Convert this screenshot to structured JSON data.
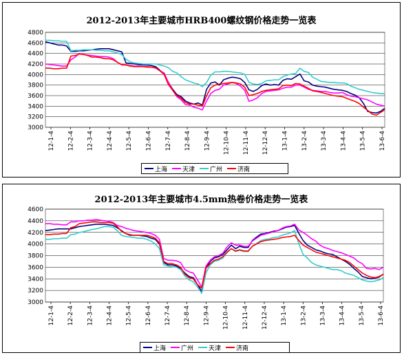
{
  "charts": [
    {
      "title": "2012-2013年主要城市HRB400螺纹钢价格走势一览表",
      "legend": [
        {
          "name": "上海",
          "color": "#000080"
        },
        {
          "name": "天津",
          "color": "#ff00ff"
        },
        {
          "name": "广州",
          "color": "#33cccc"
        },
        {
          "name": "济南",
          "color": "#ff0000"
        }
      ]
    },
    {
      "title": "2012-2013年主要城市4.5mm热卷价格走势一览表",
      "legend": [
        {
          "name": "上海",
          "color": "#000080"
        },
        {
          "name": "广州",
          "color": "#ff00ff"
        },
        {
          "name": "天津",
          "color": "#33cccc"
        },
        {
          "name": "济南",
          "color": "#ff0000"
        }
      ]
    }
  ],
  "chart_data": [
    {
      "type": "line",
      "title": "2012-2013年主要城市HRB400螺纹钢价格走势一览表",
      "xlabel": "",
      "ylabel": "",
      "ylim": [
        3000,
        4800
      ],
      "yticks": [
        3000,
        3200,
        3400,
        3600,
        3800,
        4000,
        4200,
        4400,
        4600,
        4800
      ],
      "x": [
        0,
        1,
        2,
        3,
        4,
        5,
        6,
        7,
        8,
        9,
        10,
        11,
        12,
        13,
        14,
        15,
        16,
        17,
        18,
        19,
        20,
        21,
        22,
        23,
        24,
        25,
        26,
        27,
        28,
        29,
        30,
        31,
        32,
        33,
        34,
        35,
        36,
        37,
        38,
        39,
        40,
        41,
        42,
        43,
        44,
        45,
        46,
        47,
        48,
        49,
        50,
        51,
        52,
        53,
        54,
        55,
        56,
        57,
        58,
        59,
        60,
        61,
        62,
        63,
        64,
        65,
        66,
        67,
        68,
        69,
        70,
        71,
        72,
        73,
        74,
        75,
        76,
        77,
        78,
        79,
        80
      ],
      "x_tick_labels": [
        "12-1-4",
        "12-2-4",
        "12-3-4",
        "12-4-4",
        "12-5-4",
        "12-6-4",
        "12-7-4",
        "12-8-4",
        "12-9-4",
        "12-10-4",
        "12-11-4",
        "12-12-4",
        "13-1-4",
        "13-2-4",
        "13-3-4",
        "13-4-4",
        "13-5-4",
        "13-6-4"
      ],
      "grid": true,
      "legend_position": "bottom",
      "series": [
        {
          "name": "上海",
          "color": "#000080",
          "values": [
            4620,
            4600,
            4580,
            4560,
            4560,
            4540,
            4440,
            4440,
            4450,
            4450,
            4460,
            4470,
            4480,
            4490,
            4490,
            4490,
            4470,
            4450,
            4430,
            4220,
            4210,
            4200,
            4190,
            4180,
            4180,
            4170,
            4150,
            4080,
            4000,
            3850,
            3720,
            3620,
            3580,
            3500,
            3460,
            3440,
            3460,
            3420,
            3720,
            3840,
            3860,
            3800,
            3900,
            3930,
            3950,
            3940,
            3920,
            3850,
            3710,
            3680,
            3720,
            3790,
            3820,
            3800,
            3810,
            3800,
            3890,
            3920,
            3910,
            3960,
            4010,
            3880,
            3860,
            3800,
            3780,
            3770,
            3760,
            3740,
            3720,
            3710,
            3700,
            3680,
            3640,
            3610,
            3560,
            3450,
            3300,
            3280,
            3270,
            3300,
            3360
          ]
        },
        {
          "name": "天津",
          "color": "#ff00ff",
          "values": [
            4200,
            4190,
            4180,
            4170,
            4160,
            4160,
            4280,
            4330,
            4400,
            4380,
            4370,
            4360,
            4350,
            4340,
            4340,
            4330,
            4300,
            4230,
            4180,
            4180,
            4170,
            4160,
            4160,
            4150,
            4150,
            4140,
            4120,
            4070,
            4030,
            3850,
            3700,
            3580,
            3520,
            3430,
            3420,
            3380,
            3360,
            3330,
            3500,
            3640,
            3700,
            3720,
            3800,
            3820,
            3850,
            3830,
            3780,
            3700,
            3490,
            3520,
            3560,
            3640,
            3680,
            3690,
            3700,
            3710,
            3740,
            3760,
            3760,
            3800,
            3800,
            3760,
            3720,
            3700,
            3690,
            3680,
            3680,
            3660,
            3650,
            3650,
            3660,
            3620,
            3590,
            3580,
            3560,
            3540,
            3520,
            3480,
            3440,
            3420,
            3400
          ]
        },
        {
          "name": "广州",
          "color": "#33cccc",
          "values": [
            4650,
            4650,
            4640,
            4640,
            4630,
            4630,
            4450,
            4460,
            4460,
            4470,
            4470,
            4470,
            4460,
            4460,
            4450,
            4450,
            4430,
            4410,
            4380,
            4290,
            4240,
            4220,
            4210,
            4200,
            4200,
            4200,
            4200,
            4180,
            4160,
            4130,
            4060,
            4030,
            3960,
            3900,
            3870,
            3840,
            3820,
            3770,
            3850,
            3990,
            4050,
            4050,
            4060,
            4060,
            4050,
            4040,
            4030,
            4000,
            3850,
            3820,
            3810,
            3830,
            3880,
            3890,
            3900,
            3900,
            3960,
            3990,
            4010,
            4020,
            4120,
            4060,
            4040,
            3950,
            3910,
            3870,
            3860,
            3850,
            3850,
            3840,
            3840,
            3830,
            3780,
            3750,
            3720,
            3700,
            3680,
            3660,
            3650,
            3640,
            3640
          ]
        },
        {
          "name": "济南",
          "color": "#ff0000",
          "values": [
            4120,
            4120,
            4110,
            4110,
            4120,
            4120,
            4350,
            4360,
            4390,
            4380,
            4360,
            4330,
            4330,
            4320,
            4300,
            4300,
            4280,
            4230,
            4190,
            4180,
            4160,
            4150,
            4150,
            4150,
            4140,
            4140,
            4130,
            4070,
            4000,
            3810,
            3700,
            3600,
            3550,
            3470,
            3440,
            3440,
            3420,
            3400,
            3600,
            3750,
            3800,
            3820,
            3830,
            3840,
            3850,
            3840,
            3820,
            3760,
            3600,
            3620,
            3640,
            3680,
            3700,
            3710,
            3720,
            3730,
            3790,
            3800,
            3790,
            3830,
            3820,
            3780,
            3740,
            3690,
            3680,
            3660,
            3640,
            3620,
            3600,
            3590,
            3580,
            3550,
            3520,
            3490,
            3450,
            3380,
            3320,
            3250,
            3230,
            3280,
            3330
          ]
        }
      ]
    },
    {
      "type": "line",
      "title": "2012-2013年主要城市4.5mm热卷价格走势一览表",
      "xlabel": "",
      "ylabel": "",
      "ylim": [
        3000,
        4600
      ],
      "yticks": [
        3000,
        3200,
        3400,
        3600,
        3800,
        4000,
        4200,
        4400,
        4600
      ],
      "x": [
        0,
        1,
        2,
        3,
        4,
        5,
        6,
        7,
        8,
        9,
        10,
        11,
        12,
        13,
        14,
        15,
        16,
        17,
        18,
        19,
        20,
        21,
        22,
        23,
        24,
        25,
        26,
        27,
        28,
        29,
        30,
        31,
        32,
        33,
        34,
        35,
        36,
        37,
        38,
        39,
        40,
        41,
        42,
        43,
        44,
        45,
        46,
        47,
        48,
        49,
        50,
        51,
        52,
        53,
        54,
        55,
        56,
        57,
        58,
        59,
        60,
        61,
        62,
        63,
        64,
        65,
        66,
        67,
        68,
        69,
        70,
        71,
        72,
        73,
        74,
        75,
        76,
        77,
        78,
        79,
        80
      ],
      "x_tick_labels": [
        "12-1-4",
        "12-2-4",
        "12-3-4",
        "12-4-4",
        "12-5-4",
        "12-6-4",
        "12-7-4",
        "12-8-4",
        "12-9-4",
        "12-10-4",
        "12-11-4",
        "12-12-4",
        "13-1-4",
        "13-2-4",
        "13-3-4",
        "13-4-4",
        "13-5-4",
        "13-6-4"
      ],
      "grid": true,
      "legend_position": "bottom",
      "series": [
        {
          "name": "上海",
          "color": "#000080",
          "values": [
            4230,
            4240,
            4250,
            4260,
            4260,
            4260,
            4260,
            4280,
            4300,
            4310,
            4320,
            4330,
            4340,
            4340,
            4340,
            4330,
            4320,
            4280,
            4230,
            4180,
            4150,
            4150,
            4150,
            4140,
            4130,
            4100,
            4080,
            4000,
            3680,
            3640,
            3640,
            3620,
            3580,
            3500,
            3440,
            3420,
            3300,
            3180,
            3580,
            3700,
            3760,
            3780,
            3820,
            3900,
            3980,
            3920,
            3960,
            3940,
            3940,
            4060,
            4120,
            4170,
            4180,
            4200,
            4220,
            4230,
            4260,
            4290,
            4300,
            4320,
            4180,
            4060,
            3980,
            3940,
            3900,
            3880,
            3850,
            3830,
            3820,
            3780,
            3740,
            3700,
            3650,
            3580,
            3520,
            3440,
            3420,
            3400,
            3410,
            3430,
            3480
          ]
        },
        {
          "name": "广州",
          "color": "#ff00ff",
          "values": [
            4350,
            4350,
            4340,
            4340,
            4330,
            4330,
            4380,
            4380,
            4400,
            4400,
            4410,
            4410,
            4420,
            4410,
            4400,
            4390,
            4370,
            4320,
            4300,
            4270,
            4250,
            4230,
            4220,
            4210,
            4200,
            4180,
            4150,
            4080,
            3750,
            3720,
            3720,
            3710,
            3680,
            3560,
            3520,
            3500,
            3380,
            3260,
            3620,
            3720,
            3780,
            3800,
            3840,
            3950,
            4020,
            3980,
            3980,
            3960,
            3960,
            4050,
            4100,
            4150,
            4170,
            4190,
            4210,
            4230,
            4270,
            4300,
            4310,
            4340,
            4240,
            4200,
            4150,
            4090,
            4050,
            3980,
            3940,
            3920,
            3890,
            3870,
            3850,
            3820,
            3790,
            3760,
            3700,
            3660,
            3580,
            3570,
            3580,
            3560,
            3600
          ]
        },
        {
          "name": "天津",
          "color": "#33cccc",
          "values": [
            4080,
            4080,
            4090,
            4090,
            4100,
            4100,
            4160,
            4170,
            4200,
            4210,
            4230,
            4250,
            4260,
            4280,
            4300,
            4300,
            4290,
            4230,
            4150,
            4130,
            4120,
            4110,
            4100,
            4100,
            4080,
            4050,
            4000,
            3920,
            3640,
            3620,
            3610,
            3600,
            3560,
            3450,
            3380,
            3350,
            3260,
            3150,
            3500,
            3640,
            3700,
            3720,
            3760,
            3850,
            3920,
            3870,
            3890,
            3870,
            3870,
            3960,
            4010,
            4060,
            4080,
            4090,
            4110,
            4120,
            4150,
            4170,
            4190,
            4230,
            4000,
            3820,
            3760,
            3680,
            3640,
            3620,
            3600,
            3580,
            3560,
            3560,
            3540,
            3500,
            3480,
            3460,
            3420,
            3380,
            3360,
            3350,
            3360,
            3380,
            3420
          ]
        },
        {
          "name": "济南",
          "color": "#ff0000",
          "values": [
            4160,
            4160,
            4170,
            4170,
            4180,
            4180,
            4280,
            4300,
            4350,
            4360,
            4370,
            4380,
            4380,
            4370,
            4370,
            4370,
            4360,
            4300,
            4220,
            4180,
            4160,
            4150,
            4150,
            4150,
            4150,
            4130,
            4100,
            4020,
            3700,
            3660,
            3660,
            3640,
            3600,
            3480,
            3420,
            3400,
            3300,
            3240,
            3580,
            3660,
            3720,
            3740,
            3780,
            3860,
            3920,
            3880,
            3900,
            3880,
            3880,
            3960,
            4000,
            4040,
            4060,
            4070,
            4080,
            4090,
            4110,
            4120,
            4130,
            4150,
            4060,
            3980,
            3940,
            3900,
            3860,
            3840,
            3820,
            3800,
            3780,
            3760,
            3740,
            3720,
            3680,
            3620,
            3560,
            3500,
            3460,
            3430,
            3420,
            3440,
            3480
          ]
        }
      ]
    }
  ]
}
